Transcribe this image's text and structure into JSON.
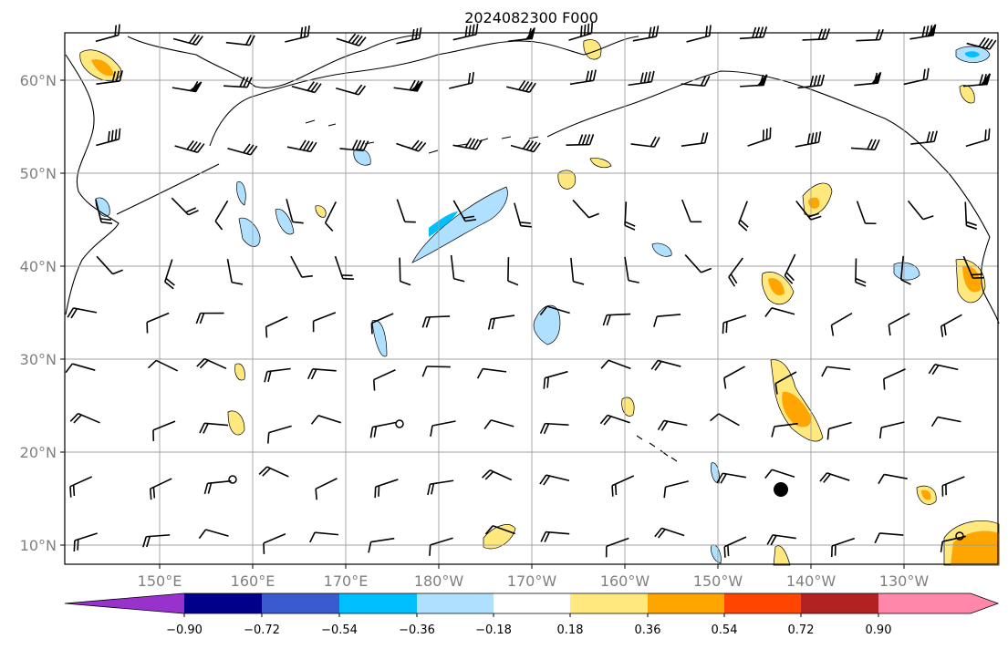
{
  "title": "2024082300 F000",
  "map": {
    "lat_labels": [
      "60°N",
      "50°N",
      "40°N",
      "30°N",
      "20°N",
      "10°N"
    ],
    "lon_labels": [
      "150°E",
      "160°E",
      "170°E",
      "180°W",
      "170°W",
      "160°W",
      "150°W",
      "140°W",
      "130°W"
    ]
  },
  "colorbar": {
    "ticks": [
      "−0.90",
      "−0.72",
      "−0.54",
      "−0.36",
      "−0.18",
      "0.18",
      "0.36",
      "0.54",
      "0.72",
      "0.90"
    ],
    "colors": [
      "#9932cc",
      "#00008b",
      "#3a5bcf",
      "#00bfff",
      "#b0e0ff",
      "#ffffff",
      "#ffe97f",
      "#ffa500",
      "#ff4500",
      "#b22222",
      "#ff88aa"
    ]
  },
  "colors": {
    "land": "#000000",
    "grid": "#a0a0a0",
    "barb": "#000000"
  }
}
